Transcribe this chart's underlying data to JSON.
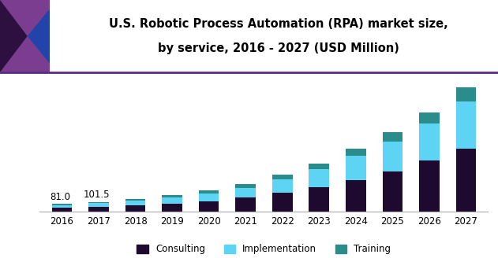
{
  "title_line1": "U.S. Robotic Process Automation (RPA) market size,",
  "title_line2": "by service, 2016 - 2027 (USD Million)",
  "years": [
    2016,
    2017,
    2018,
    2019,
    2020,
    2021,
    2022,
    2023,
    2024,
    2025,
    2026,
    2027
  ],
  "consulting": [
    38,
    50,
    65,
    85,
    110,
    148,
    195,
    255,
    330,
    420,
    530,
    660
  ],
  "implementation": [
    30,
    38,
    50,
    62,
    80,
    100,
    140,
    185,
    250,
    310,
    390,
    490
  ],
  "training": [
    13,
    13.5,
    20,
    25,
    30,
    38,
    48,
    60,
    75,
    95,
    115,
    145
  ],
  "annotations": {
    "2016": "81.0",
    "2017": "101.5"
  },
  "color_consulting": "#1e0a2e",
  "color_implementation": "#5dd4f4",
  "color_training": "#2b8c8c",
  "bar_width": 0.55,
  "ylim": [
    0,
    1400
  ],
  "legend_labels": [
    "Consulting",
    "Implementation",
    "Training"
  ],
  "header_line_color": "#5a2d82",
  "bg_color": "#ffffff",
  "title_fontsize": 10.5,
  "tick_fontsize": 8.5,
  "logo_purple": "#7b3d8f",
  "logo_dark": "#2d1040",
  "logo_blue": "#2244aa"
}
